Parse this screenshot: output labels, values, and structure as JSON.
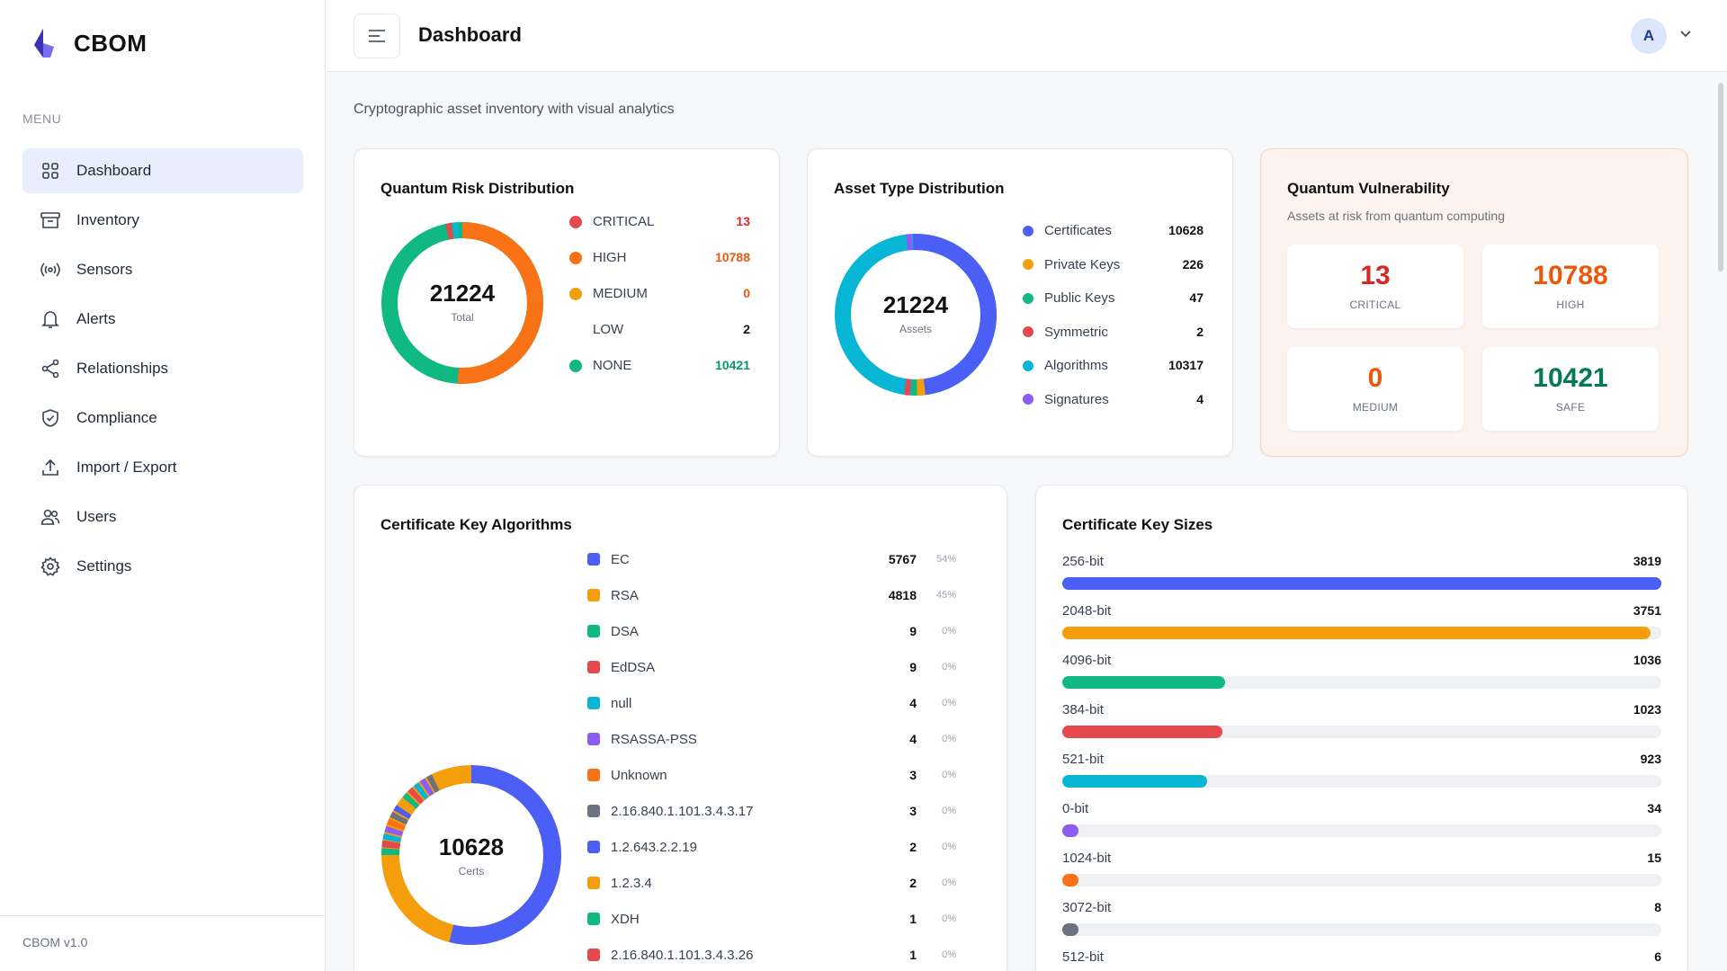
{
  "brand": {
    "name": "CBOM"
  },
  "sidebar": {
    "menu_label": "MENU",
    "items": [
      {
        "label": "Dashboard",
        "icon": "grid-icon",
        "active": true
      },
      {
        "label": "Inventory",
        "icon": "archive-icon"
      },
      {
        "label": "Sensors",
        "icon": "broadcast-icon"
      },
      {
        "label": "Alerts",
        "icon": "bell-icon"
      },
      {
        "label": "Relationships",
        "icon": "share-icon"
      },
      {
        "label": "Compliance",
        "icon": "shield-check-icon"
      },
      {
        "label": "Import / Export",
        "icon": "upload-icon"
      },
      {
        "label": "Users",
        "icon": "users-icon"
      },
      {
        "label": "Settings",
        "icon": "gear-icon"
      }
    ],
    "version": "CBOM v1.0"
  },
  "header": {
    "title": "Dashboard",
    "avatar_initial": "A"
  },
  "subtitle": "Cryptographic asset inventory with visual analytics",
  "colors": {
    "critical": "#e5484d",
    "high": "#f97316",
    "medium": "#f59e0b",
    "none": "#10b981",
    "blue": "#4b5ef5",
    "orange": "#f59e0b",
    "green": "#10b981",
    "red": "#e5484d",
    "cyan": "#06b6d4",
    "purple": "#8b5cf6",
    "gray": "#6b7280"
  },
  "risk_card": {
    "title": "Quantum Risk Distribution",
    "total": "21224",
    "total_label": "Total",
    "items": [
      {
        "label": "CRITICAL",
        "value": "13",
        "color": "#e5484d",
        "show_dot": true,
        "val_color": "#dc2626"
      },
      {
        "label": "HIGH",
        "value": "10788",
        "color": "#f97316",
        "show_dot": true,
        "val_color": "#ea580c"
      },
      {
        "label": "MEDIUM",
        "value": "0",
        "color": "#f59e0b",
        "show_dot": true,
        "val_color": "#ea580c"
      },
      {
        "label": "LOW",
        "value": "2",
        "color": "#ffffff",
        "show_dot": false,
        "val_color": "#111111"
      },
      {
        "label": "NONE",
        "value": "10421",
        "color": "#10b981",
        "show_dot": true,
        "val_color": "#059669"
      }
    ]
  },
  "asset_card": {
    "title": "Asset Type Distribution",
    "total": "21224",
    "total_label": "Assets",
    "items": [
      {
        "label": "Certificates",
        "value": "10628",
        "color": "#4b5ef5"
      },
      {
        "label": "Private Keys",
        "value": "226",
        "color": "#f59e0b"
      },
      {
        "label": "Public Keys",
        "value": "47",
        "color": "#10b981"
      },
      {
        "label": "Symmetric",
        "value": "2",
        "color": "#e5484d"
      },
      {
        "label": "Algorithms",
        "value": "10317",
        "color": "#06b6d4"
      },
      {
        "label": "Signatures",
        "value": "4",
        "color": "#8b5cf6"
      }
    ]
  },
  "vuln_card": {
    "title": "Quantum Vulnerability",
    "subtitle": "Assets at risk from quantum computing",
    "boxes": [
      {
        "value": "13",
        "caption": "CRITICAL",
        "color": "#dc2626"
      },
      {
        "value": "10788",
        "caption": "HIGH",
        "color": "#ea580c"
      },
      {
        "value": "0",
        "caption": "MEDIUM",
        "color": "#ea580c"
      },
      {
        "value": "10421",
        "caption": "SAFE",
        "color": "#047857"
      }
    ]
  },
  "alg_card": {
    "title": "Certificate Key Algorithms",
    "total": "10628",
    "total_label": "Certs",
    "items": [
      {
        "label": "EC",
        "value": "5767",
        "pct": "54%",
        "color": "#4b5ef5"
      },
      {
        "label": "RSA",
        "value": "4818",
        "pct": "45%",
        "color": "#f59e0b"
      },
      {
        "label": "DSA",
        "value": "9",
        "pct": "0%",
        "color": "#10b981"
      },
      {
        "label": "EdDSA",
        "value": "9",
        "pct": "0%",
        "color": "#e5484d"
      },
      {
        "label": "null",
        "value": "4",
        "pct": "0%",
        "color": "#06b6d4"
      },
      {
        "label": "RSASSA-PSS",
        "value": "4",
        "pct": "0%",
        "color": "#8b5cf6"
      },
      {
        "label": "Unknown",
        "value": "3",
        "pct": "0%",
        "color": "#f97316"
      },
      {
        "label": "2.16.840.1.101.3.4.3.17",
        "value": "3",
        "pct": "0%",
        "color": "#6b7280"
      },
      {
        "label": "1.2.643.2.2.19",
        "value": "2",
        "pct": "0%",
        "color": "#4b5ef5"
      },
      {
        "label": "1.2.3.4",
        "value": "2",
        "pct": "0%",
        "color": "#f59e0b"
      },
      {
        "label": "XDH",
        "value": "1",
        "pct": "0%",
        "color": "#10b981"
      },
      {
        "label": "2.16.840.1.101.3.4.3.26",
        "value": "1",
        "pct": "0%",
        "color": "#e5484d"
      }
    ]
  },
  "keysize_card": {
    "title": "Certificate Key Sizes",
    "max": 3819,
    "items": [
      {
        "label": "256-bit",
        "value": "3819",
        "color": "#4b5ef5"
      },
      {
        "label": "2048-bit",
        "value": "3751",
        "color": "#f59e0b"
      },
      {
        "label": "4096-bit",
        "value": "1036",
        "color": "#10b981"
      },
      {
        "label": "384-bit",
        "value": "1023",
        "color": "#e5484d"
      },
      {
        "label": "521-bit",
        "value": "923",
        "color": "#06b6d4"
      },
      {
        "label": "0-bit",
        "value": "34",
        "color": "#8b5cf6"
      },
      {
        "label": "1024-bit",
        "value": "15",
        "color": "#f97316"
      },
      {
        "label": "3072-bit",
        "value": "8",
        "color": "#6b7280"
      },
      {
        "label": "512-bit",
        "value": "6",
        "color": "#4b5ef5"
      }
    ]
  }
}
